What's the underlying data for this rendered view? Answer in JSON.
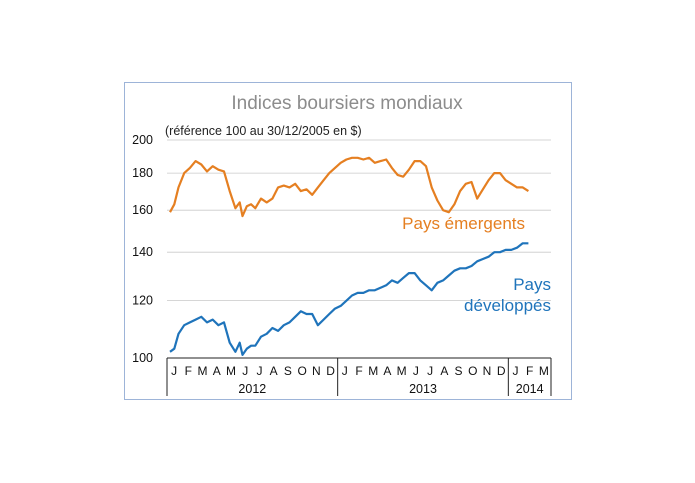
{
  "chart_data": {
    "type": "line",
    "title": "Indices boursiers mondiaux",
    "subtitle": "(référence 100 au 30/12/2005 en $)",
    "yscale": "log",
    "ylim": [
      100,
      200
    ],
    "yticks": [
      100,
      120,
      140,
      160,
      180,
      200
    ],
    "grid": true,
    "x_months": [
      "J",
      "F",
      "M",
      "A",
      "M",
      "J",
      "J",
      "A",
      "S",
      "O",
      "N",
      "D",
      "J",
      "F",
      "M",
      "A",
      "M",
      "J",
      "J",
      "A",
      "S",
      "O",
      "N",
      "D",
      "J",
      "F",
      "M"
    ],
    "years": [
      "2012",
      "2013",
      "2014"
    ],
    "series": [
      {
        "name": "Pays émergents",
        "color": "#e57f21",
        "x": [
          0,
          0.3,
          0.6,
          1.0,
          1.4,
          1.8,
          2.2,
          2.6,
          3.0,
          3.4,
          3.8,
          4.2,
          4.6,
          4.9,
          5.1,
          5.4,
          5.7,
          6.0,
          6.4,
          6.8,
          7.2,
          7.6,
          8.0,
          8.4,
          8.8,
          9.2,
          9.6,
          10.0,
          10.4,
          10.8,
          11.2,
          11.6,
          12.0,
          12.4,
          12.8,
          13.2,
          13.6,
          14.0,
          14.4,
          14.8,
          15.2,
          15.6,
          16.0,
          16.4,
          16.8,
          17.2,
          17.6,
          18.0,
          18.4,
          18.8,
          19.2,
          19.6,
          20.0,
          20.4,
          20.8,
          21.2,
          21.6,
          22.0,
          22.4,
          22.8,
          23.2,
          23.6,
          24.0,
          24.4,
          24.8,
          25.2
        ],
        "values": [
          159,
          163,
          172,
          180,
          183,
          187,
          185,
          181,
          184,
          182,
          181,
          170,
          161,
          164,
          157,
          162,
          163,
          161,
          166,
          164,
          166,
          172,
          173,
          172,
          174,
          170,
          171,
          168,
          172,
          176,
          180,
          183,
          186,
          188,
          189,
          189,
          188,
          189,
          186,
          187,
          188,
          183,
          179,
          178,
          182,
          187,
          187,
          184,
          172,
          165,
          160,
          159,
          163,
          170,
          174,
          175,
          166,
          171,
          176,
          180,
          180,
          176,
          174,
          172,
          172,
          170
        ]
      },
      {
        "name": "Pays développés",
        "color": "#1f74bb",
        "x": [
          0,
          0.3,
          0.6,
          1.0,
          1.4,
          1.8,
          2.2,
          2.6,
          3.0,
          3.4,
          3.8,
          4.2,
          4.6,
          4.9,
          5.1,
          5.4,
          5.7,
          6.0,
          6.4,
          6.8,
          7.2,
          7.6,
          8.0,
          8.4,
          8.8,
          9.2,
          9.6,
          10.0,
          10.4,
          10.8,
          11.2,
          11.6,
          12.0,
          12.4,
          12.8,
          13.2,
          13.6,
          14.0,
          14.4,
          14.8,
          15.2,
          15.6,
          16.0,
          16.4,
          16.8,
          17.2,
          17.6,
          18.0,
          18.4,
          18.8,
          19.2,
          19.6,
          20.0,
          20.4,
          20.8,
          21.2,
          21.6,
          22.0,
          22.4,
          22.8,
          23.2,
          23.6,
          24.0,
          24.4,
          24.8,
          25.2
        ],
        "values": [
          102,
          103,
          108,
          111,
          112,
          113,
          114,
          112,
          113,
          111,
          112,
          105,
          102,
          105,
          101,
          103,
          104,
          104,
          107,
          108,
          110,
          109,
          111,
          112,
          114,
          116,
          115,
          115,
          111,
          113,
          115,
          117,
          118,
          120,
          122,
          123,
          123,
          124,
          124,
          125,
          126,
          128,
          127,
          129,
          131,
          131,
          128,
          126,
          124,
          127,
          128,
          130,
          132,
          133,
          133,
          134,
          136,
          137,
          138,
          140,
          140,
          141,
          141,
          142,
          144,
          144
        ]
      }
    ]
  }
}
